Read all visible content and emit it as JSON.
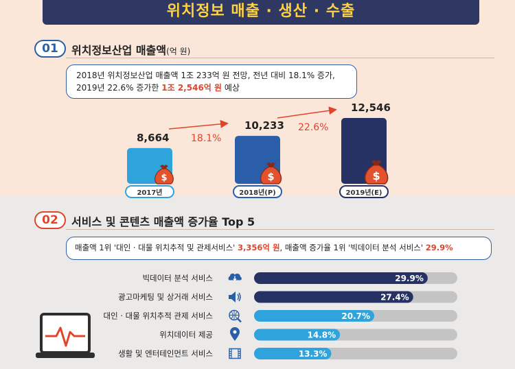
{
  "banner": {
    "title": "위치정보 매출 · 생산 · 수출"
  },
  "section1": {
    "number": "01",
    "title": "위치정보산업 매출액",
    "unit": "(억 원)",
    "callout_line1": "2018년 위치정보산업 매출액 1조 233억 원 전망, 전년 대비 18.1% 증가,",
    "callout_line2_pre": "2019년 22.6% 증가한 ",
    "callout_line2_hl": "1조 2,546억 원",
    "callout_line2_post": " 예상"
  },
  "section2": {
    "number": "02",
    "title": "서비스 및 콘텐츠 매출액 증가율 Top 5",
    "callout_pre": "매출액 1위 '대인 · 대물 위치추적 및 관제서비스' ",
    "callout_hl1": "3,356억 원",
    "callout_mid": ", 매출액 증가율 1위 '빅데이터 분석 서비스' ",
    "callout_hl2": "29.9%"
  },
  "chart_data": [
    {
      "type": "bar",
      "categories": [
        "2017년",
        "2018년(P)",
        "2019년(E)"
      ],
      "values": [
        8664,
        10233,
        12546
      ],
      "value_labels": [
        "8,664",
        "10,233",
        "12,546"
      ],
      "growth_labels": [
        "18.1%",
        "22.6%"
      ],
      "colors": [
        "#2fa3dc",
        "#2a5ea8",
        "#263263"
      ],
      "title": "위치정보산업 매출액",
      "unit": "(억 원)",
      "icons": [
        "money-bag-icon",
        "money-bag-icon",
        "money-bag-icon"
      ]
    },
    {
      "type": "bar",
      "orientation": "horizontal",
      "categories": [
        "빅데이터 분석 서비스",
        "광고마케팅 및 상거래 서비스",
        "대인 · 대물 위치추적 관제 서비스",
        "위치데이터 제공",
        "생활 및 엔터테인먼트 서비스"
      ],
      "values": [
        29.9,
        27.4,
        20.7,
        14.8,
        13.3
      ],
      "value_labels": [
        "29.9%",
        "27.4%",
        "20.7%",
        "14.8%",
        "13.3%"
      ],
      "xlim": [
        0,
        35
      ],
      "colors": [
        "#263263",
        "#263263",
        "#2fa3dc",
        "#2fa3dc",
        "#2fa3dc"
      ],
      "track_color": "#c4c4c4",
      "icons": [
        "cloud-download-icon",
        "speaker-icon",
        "globe-search-icon",
        "location-pin-icon",
        "film-strip-icon"
      ]
    }
  ]
}
